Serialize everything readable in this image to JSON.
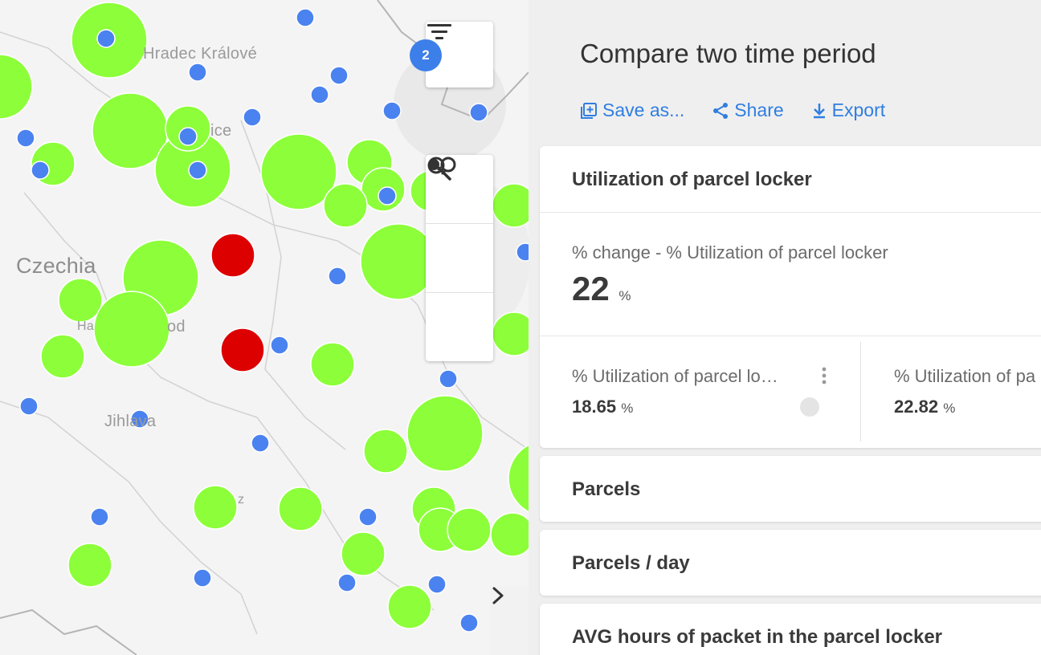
{
  "map": {
    "places": [
      {
        "name": "Hradec Králové"
      },
      {
        "name": "ice"
      },
      {
        "name": "Czechia"
      },
      {
        "name": "Ha"
      },
      {
        "name": "od"
      },
      {
        "name": "Jihlava"
      },
      {
        "name": "z"
      }
    ],
    "filter_badge": "2",
    "icons": {
      "filter": "filter-lines-icon",
      "search": "magnifier-icon",
      "layers": "dot-circle-icon",
      "measure": "ruler-icon",
      "collapse": "chevron-right-icon"
    },
    "colors": {
      "green": "#8cff3a",
      "blue": "#4a82f0",
      "red": "#dd0000"
    }
  },
  "panel": {
    "title": "Compare two time period",
    "actions": [
      {
        "label": "Save as...",
        "icon": "save-as-icon"
      },
      {
        "label": "Share",
        "icon": "share-icon"
      },
      {
        "label": "Export",
        "icon": "download-icon"
      }
    ],
    "utilization": {
      "title": "Utilization of parcel locker",
      "change_label": "% change - % Utilization of parcel locker",
      "change_value": "22",
      "change_unit": "%",
      "period_a_label": "% Utilization of parcel lo…",
      "period_a_value": "18.65",
      "period_a_unit": "%",
      "period_b_label": "% Utilization of pa",
      "period_b_value": "22.82",
      "period_b_unit": "%"
    },
    "cards": [
      {
        "title": "Parcels"
      },
      {
        "title": "Parcels / day"
      },
      {
        "title": "AVG hours of packet in the parcel locker"
      }
    ],
    "accent": "#2f7ee0"
  }
}
